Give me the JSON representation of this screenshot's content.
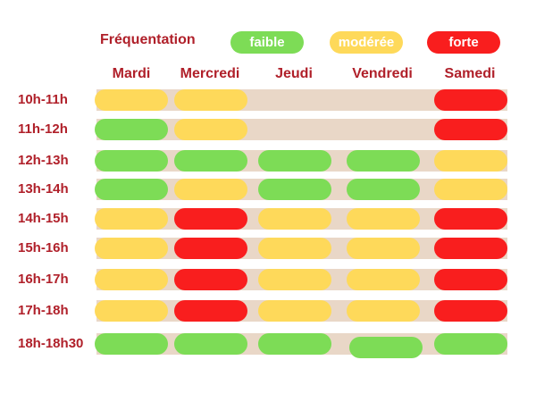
{
  "colors": {
    "faible": "#7ddc56",
    "moderee": "#fed95a",
    "forte": "#f91e1e",
    "band": "#e9d7c7"
  },
  "chart_data": {
    "type": "table",
    "title": "Fréquentation",
    "legend": [
      {
        "key": "faible",
        "label": "faible"
      },
      {
        "key": "moderee",
        "label": "modérée"
      },
      {
        "key": "forte",
        "label": "forte"
      }
    ],
    "days": [
      "Mardi",
      "Mercredi",
      "Jeudi",
      "Vendredi",
      "Samedi"
    ],
    "slots": [
      "10h-11h",
      "11h-12h",
      "12h-13h",
      "13h-14h",
      "14h-15h",
      "15h-16h",
      "16h-17h",
      "17h-18h",
      "18h-18h30"
    ],
    "grid": [
      [
        "moderee",
        "moderee",
        null,
        null,
        "forte"
      ],
      [
        "faible",
        "moderee",
        null,
        null,
        "forte"
      ],
      [
        "faible",
        "faible",
        "faible",
        "faible",
        "moderee"
      ],
      [
        "faible",
        "moderee",
        "faible",
        "faible",
        "moderee"
      ],
      [
        "moderee",
        "forte",
        "moderee",
        "moderee",
        "forte"
      ],
      [
        "moderee",
        "forte",
        "moderee",
        "moderee",
        "forte"
      ],
      [
        "moderee",
        "forte",
        "moderee",
        "moderee",
        "forte"
      ],
      [
        "moderee",
        "forte",
        "moderee",
        "moderee",
        "forte"
      ],
      [
        "faible",
        "faible",
        "faible",
        "faible",
        "faible"
      ]
    ]
  }
}
